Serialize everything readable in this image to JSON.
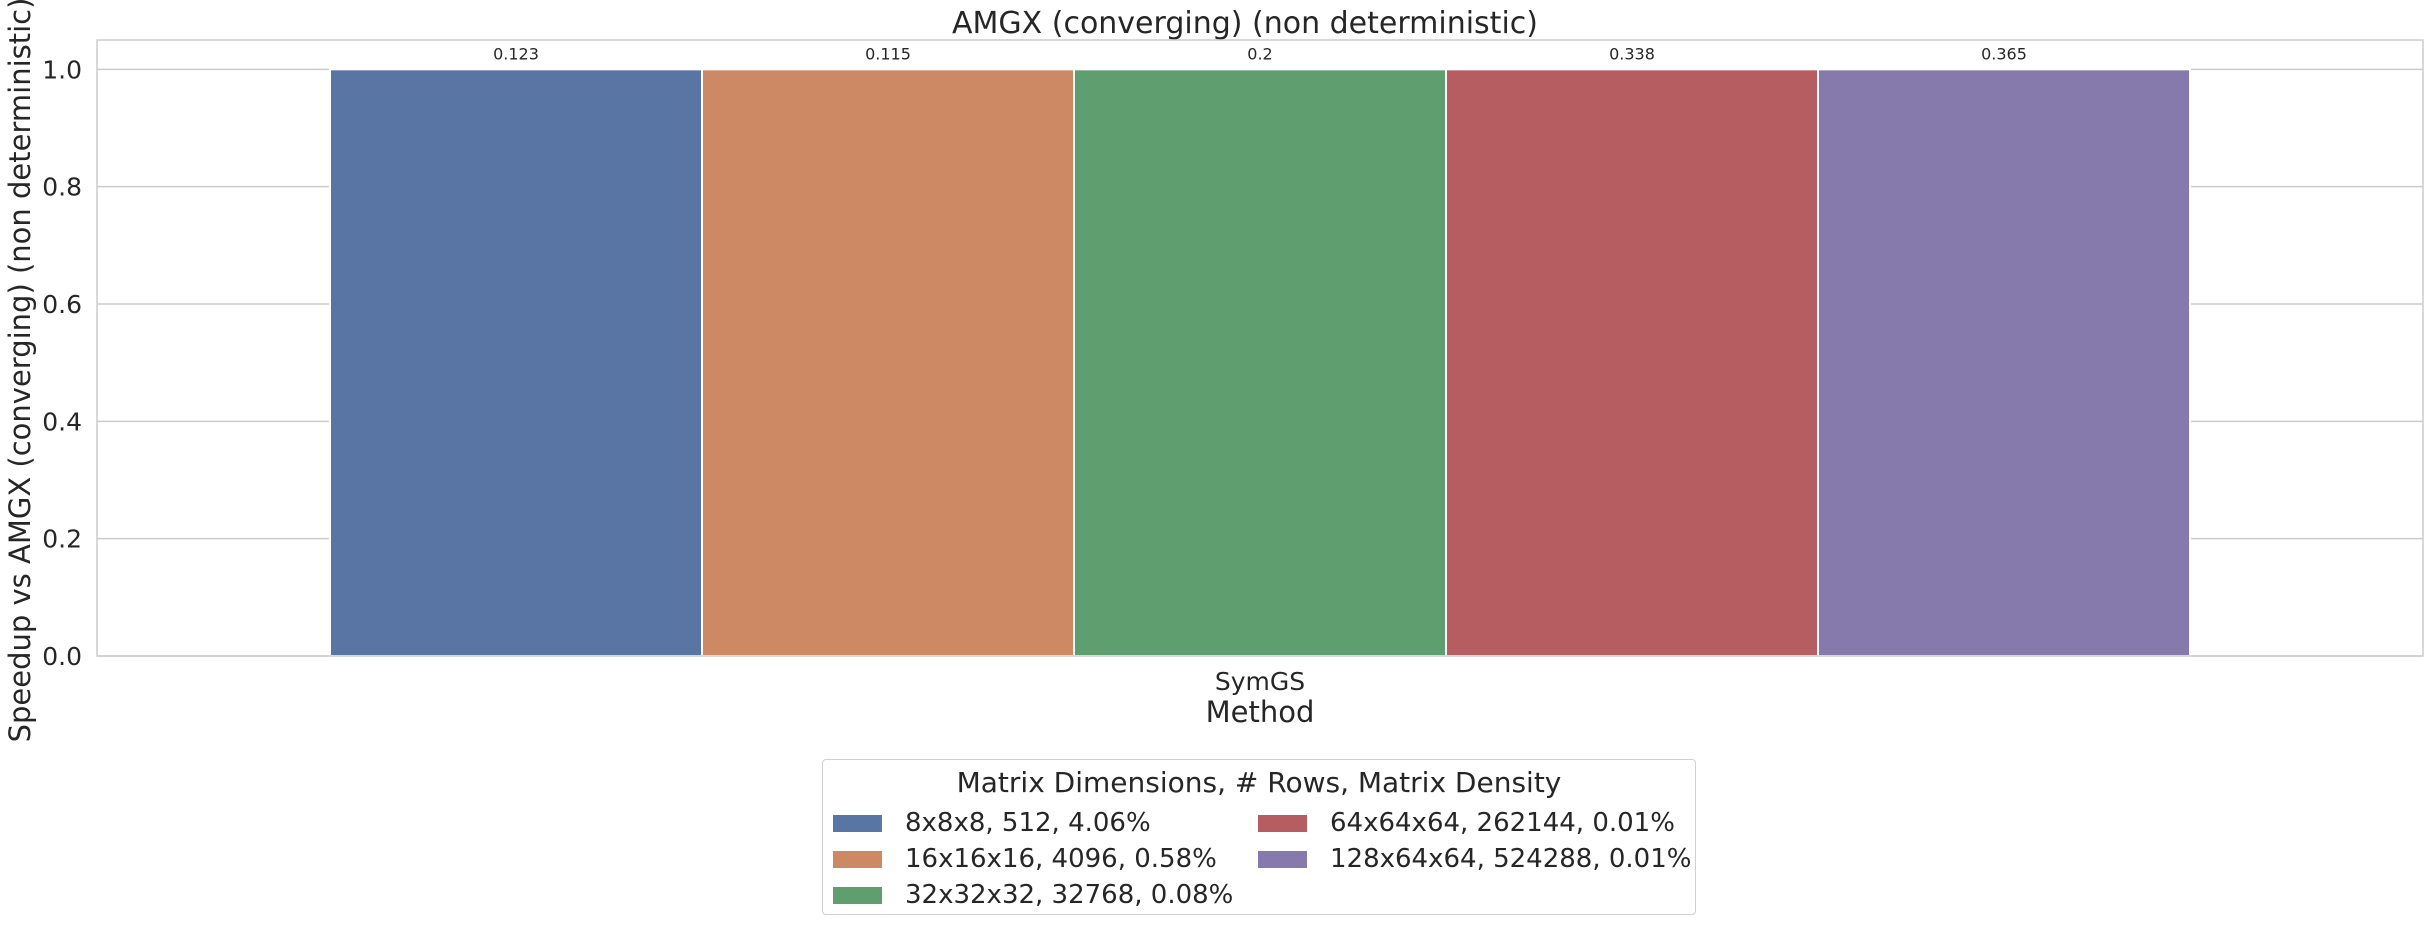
{
  "chart_data": {
    "type": "bar",
    "title": "AMGX (converging) (non deterministic)",
    "xlabel": "Method",
    "ylabel": "Speedup vs AMGX (converging) (non deterministic)",
    "categories": [
      "SymGS"
    ],
    "ylim": [
      0,
      1.05
    ],
    "yticks": [
      "0.0",
      "0.2",
      "0.4",
      "0.6",
      "0.8",
      "1.0"
    ],
    "grid": true,
    "legend": {
      "title": "Matrix Dimensions, # Rows, Matrix Density",
      "placement": "bottom-center",
      "columns": 2
    },
    "series": [
      {
        "name": "8x8x8, 512, 4.06%",
        "values": [
          1.0
        ],
        "label": "0.123",
        "color": "#5975a4"
      },
      {
        "name": "16x16x16, 4096, 0.58%",
        "values": [
          1.0
        ],
        "label": "0.115",
        "color": "#cc8963"
      },
      {
        "name": "32x32x32, 32768, 0.08%",
        "values": [
          1.0
        ],
        "label": "0.2",
        "color": "#5f9e6e"
      },
      {
        "name": "64x64x64, 262144, 0.01%",
        "values": [
          1.0
        ],
        "label": "0.338",
        "color": "#b55d60"
      },
      {
        "name": "128x64x64, 524288, 0.01%",
        "values": [
          1.0
        ],
        "label": "0.365",
        "color": "#857aab"
      }
    ]
  }
}
